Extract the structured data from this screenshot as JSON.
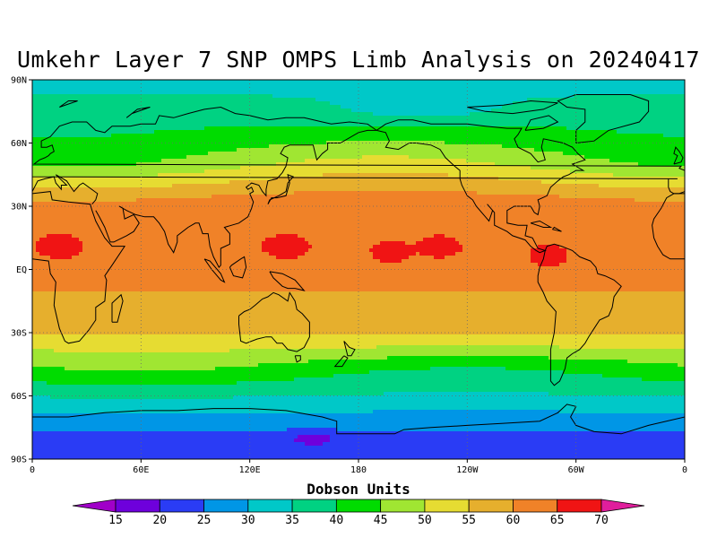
{
  "title": "Umkehr Layer 7 SNP OMPS Limb Analysis on 20240417",
  "map": {
    "lon_range": [
      0,
      360
    ],
    "lat_range": [
      -90,
      90
    ],
    "lat_ticks": [
      {
        "lat": 90,
        "label": "90N"
      },
      {
        "lat": 60,
        "label": "60N"
      },
      {
        "lat": 30,
        "label": "30N"
      },
      {
        "lat": 0,
        "label": "EQ"
      },
      {
        "lat": -30,
        "label": "30S"
      },
      {
        "lat": -60,
        "label": "60S"
      },
      {
        "lat": -90,
        "label": "90S"
      }
    ],
    "lon_ticks": [
      {
        "lon": 0,
        "label": "0"
      },
      {
        "lon": 60,
        "label": "60E"
      },
      {
        "lon": 120,
        "label": "120E"
      },
      {
        "lon": 180,
        "label": "180"
      },
      {
        "lon": 240,
        "label": "120W"
      },
      {
        "lon": 300,
        "label": "60W"
      },
      {
        "lon": 360,
        "label": "0"
      }
    ],
    "gridlines": "dotted",
    "coastlines": "black"
  },
  "colorbar": {
    "title": "Dobson Units",
    "levels": [
      15,
      20,
      25,
      30,
      35,
      40,
      45,
      50,
      55,
      60,
      65,
      70
    ],
    "colors": [
      "#a000c8",
      "#6e00dc",
      "#2a3cf5",
      "#0096e6",
      "#00c8c8",
      "#00d282",
      "#00dc00",
      "#a0e632",
      "#e6dc32",
      "#e6af2d",
      "#f08228",
      "#f01414",
      "#e01e9c"
    ]
  },
  "chart_data": {
    "type": "heatmap",
    "title": "Umkehr Layer 7 SNP OMPS Limb Analysis on 20240417",
    "variable": "Dobson Units",
    "zonal_profile": {
      "lat": [
        90,
        75,
        60,
        50,
        45,
        40,
        35,
        30,
        20,
        10,
        0,
        -10,
        -20,
        -30,
        -35,
        -40,
        -45,
        -50,
        -55,
        -60,
        -65,
        -70,
        -80,
        -90
      ],
      "value": [
        33,
        37,
        43,
        48,
        52,
        56,
        60,
        62,
        64,
        64,
        62,
        60,
        58,
        55,
        52,
        48,
        44,
        41,
        38,
        35,
        32,
        28,
        24,
        22
      ]
    },
    "maxima": [
      {
        "lon": 15,
        "lat": 10,
        "value": 67
      },
      {
        "lon": 140,
        "lat": 10,
        "value": 67
      },
      {
        "lon": 198,
        "lat": 7,
        "value": 66
      },
      {
        "lon": 225,
        "lat": 10,
        "value": 66
      },
      {
        "lon": 285,
        "lat": 5,
        "value": 66
      }
    ],
    "minima": [
      {
        "lon": 155,
        "lat": -80,
        "value": 18
      }
    ]
  }
}
